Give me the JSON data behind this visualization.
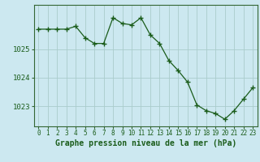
{
  "x": [
    0,
    1,
    2,
    3,
    4,
    5,
    6,
    7,
    8,
    9,
    10,
    11,
    12,
    13,
    14,
    15,
    16,
    17,
    18,
    19,
    20,
    21,
    22,
    23
  ],
  "y": [
    1025.7,
    1025.7,
    1025.7,
    1025.7,
    1025.8,
    1025.4,
    1025.2,
    1025.2,
    1026.1,
    1025.9,
    1025.85,
    1026.1,
    1025.5,
    1025.2,
    1024.6,
    1024.25,
    1023.85,
    1023.05,
    1022.85,
    1022.75,
    1022.55,
    1022.85,
    1023.25,
    1023.65
  ],
  "line_color": "#1a5c1a",
  "marker": "+",
  "marker_size": 4,
  "bg_color": "#cce8f0",
  "grid_color": "#aacccc",
  "axes_color": "#336633",
  "xlabel": "Graphe pression niveau de la mer (hPa)",
  "xlabel_fontsize": 7,
  "tick_label_color": "#1a5c1a",
  "ylim": [
    1022.3,
    1026.55
  ],
  "yticks": [
    1023,
    1024,
    1025
  ],
  "xticks": [
    0,
    1,
    2,
    3,
    4,
    5,
    6,
    7,
    8,
    9,
    10,
    11,
    12,
    13,
    14,
    15,
    16,
    17,
    18,
    19,
    20,
    21,
    22,
    23
  ]
}
